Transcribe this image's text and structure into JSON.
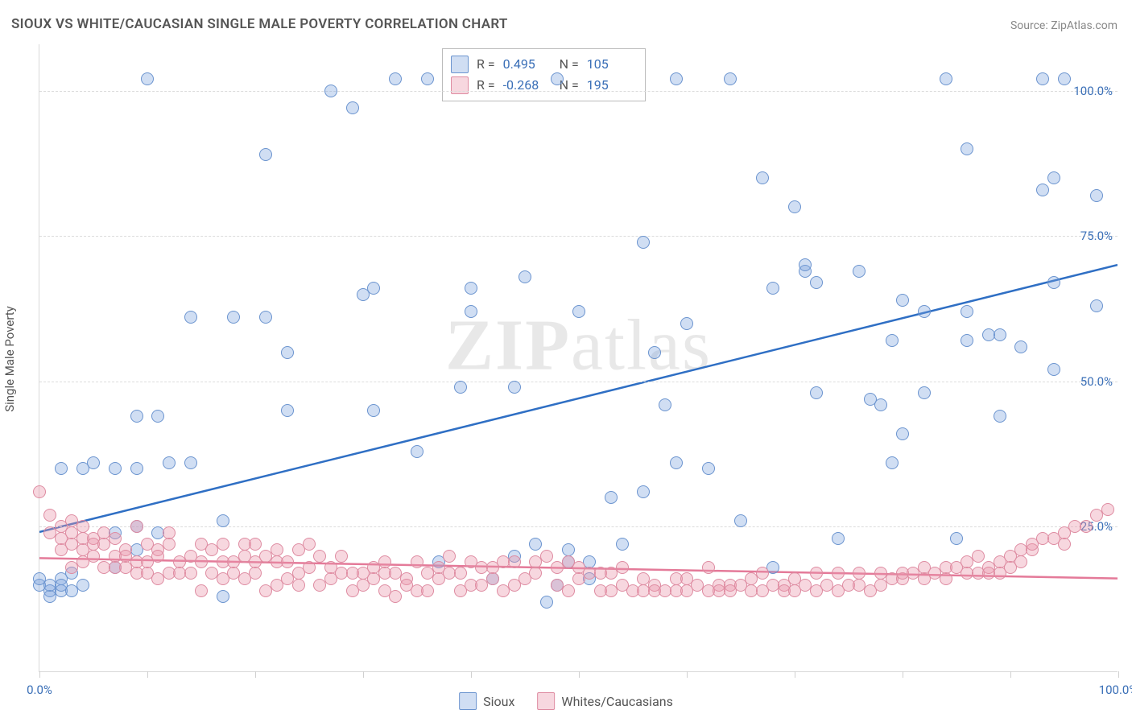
{
  "title": "SIOUX VS WHITE/CAUCASIAN SINGLE MALE POVERTY CORRELATION CHART",
  "source": "Source: ZipAtlas.com",
  "y_axis_title": "Single Male Poverty",
  "watermark": {
    "zip": "ZIP",
    "atlas": "atlas"
  },
  "chart": {
    "type": "scatter",
    "xlim": [
      0,
      100
    ],
    "ylim": [
      0,
      108
    ],
    "x_ticks": [
      0,
      10,
      20,
      30,
      40,
      50,
      60,
      70,
      80,
      90,
      100
    ],
    "y_gridlines": [
      25,
      50,
      75,
      100
    ],
    "y_labels": [
      "0.0%",
      "25.0%",
      "50.0%",
      "75.0%",
      "100.0%"
    ],
    "x_labels": {
      "min": "0.0%",
      "max": "100.0%"
    },
    "background_color": "#ffffff",
    "grid_color": "#dcdcdc",
    "tick_color": "#d0d0d0",
    "label_color": "#3a6fb7",
    "text_color": "#555555",
    "marker_radius": 8,
    "marker_border_width": 1.5,
    "trend_line_width": 2.5,
    "series": [
      {
        "name": "Sioux",
        "fill": "rgba(120,160,220,0.35)",
        "stroke": "#6b94cf",
        "trend_color": "#2f6fc4",
        "R": "0.495",
        "N": "105",
        "trend": {
          "y_at_x0": 24,
          "y_at_x100": 70
        },
        "points": [
          [
            0,
            15
          ],
          [
            0,
            16
          ],
          [
            1,
            14
          ],
          [
            1,
            13
          ],
          [
            1,
            15
          ],
          [
            2,
            16
          ],
          [
            2,
            14
          ],
          [
            2,
            15
          ],
          [
            2,
            35
          ],
          [
            3,
            14
          ],
          [
            3,
            17
          ],
          [
            4,
            15
          ],
          [
            4,
            35
          ],
          [
            5,
            36
          ],
          [
            7,
            35
          ],
          [
            7,
            18
          ],
          [
            7,
            24
          ],
          [
            9,
            21
          ],
          [
            9,
            25
          ],
          [
            9,
            35
          ],
          [
            9,
            44
          ],
          [
            10,
            102
          ],
          [
            11,
            24
          ],
          [
            11,
            44
          ],
          [
            12,
            36
          ],
          [
            14,
            36
          ],
          [
            14,
            61
          ],
          [
            17,
            13
          ],
          [
            17,
            26
          ],
          [
            18,
            61
          ],
          [
            21,
            89
          ],
          [
            21,
            61
          ],
          [
            23,
            45
          ],
          [
            23,
            55
          ],
          [
            27,
            100
          ],
          [
            29,
            97
          ],
          [
            30,
            65
          ],
          [
            31,
            45
          ],
          [
            31,
            66
          ],
          [
            33,
            102
          ],
          [
            35,
            38
          ],
          [
            36,
            102
          ],
          [
            37,
            19
          ],
          [
            39,
            49
          ],
          [
            40,
            62
          ],
          [
            40,
            66
          ],
          [
            42,
            16
          ],
          [
            44,
            20
          ],
          [
            44,
            49
          ],
          [
            45,
            68
          ],
          [
            46,
            22
          ],
          [
            47,
            12
          ],
          [
            48,
            15
          ],
          [
            48,
            102
          ],
          [
            49,
            19
          ],
          [
            49,
            21
          ],
          [
            50,
            62
          ],
          [
            51,
            16
          ],
          [
            51,
            19
          ],
          [
            53,
            30
          ],
          [
            54,
            22
          ],
          [
            56,
            74
          ],
          [
            56,
            31
          ],
          [
            57,
            55
          ],
          [
            58,
            46
          ],
          [
            59,
            102
          ],
          [
            59,
            36
          ],
          [
            60,
            60
          ],
          [
            62,
            35
          ],
          [
            64,
            102
          ],
          [
            65,
            26
          ],
          [
            67,
            85
          ],
          [
            68,
            18
          ],
          [
            68,
            66
          ],
          [
            70,
            80
          ],
          [
            71,
            69
          ],
          [
            71,
            70
          ],
          [
            72,
            48
          ],
          [
            72,
            67
          ],
          [
            74,
            23
          ],
          [
            76,
            69
          ],
          [
            77,
            47
          ],
          [
            78,
            46
          ],
          [
            79,
            57
          ],
          [
            79,
            36
          ],
          [
            80,
            64
          ],
          [
            80,
            41
          ],
          [
            82,
            48
          ],
          [
            82,
            62
          ],
          [
            84,
            102
          ],
          [
            85,
            23
          ],
          [
            86,
            90
          ],
          [
            86,
            57
          ],
          [
            86,
            62
          ],
          [
            88,
            58
          ],
          [
            89,
            44
          ],
          [
            89,
            58
          ],
          [
            91,
            56
          ],
          [
            93,
            83
          ],
          [
            93,
            102
          ],
          [
            94,
            52
          ],
          [
            94,
            85
          ],
          [
            94,
            67
          ],
          [
            95,
            102
          ],
          [
            98,
            82
          ],
          [
            98,
            63
          ]
        ]
      },
      {
        "name": "Whites/Caucasians",
        "fill": "rgba(235,150,170,0.38)",
        "stroke": "#de8ba1",
        "trend_color": "#e47a99",
        "R": "-0.268",
        "N": "195",
        "trend": {
          "y_at_x0": 19.5,
          "y_at_x100": 16
        },
        "points": [
          [
            0,
            31
          ],
          [
            1,
            24
          ],
          [
            1,
            27
          ],
          [
            2,
            23
          ],
          [
            2,
            25
          ],
          [
            2,
            21
          ],
          [
            3,
            22
          ],
          [
            3,
            24
          ],
          [
            3,
            26
          ],
          [
            3,
            18
          ],
          [
            4,
            23
          ],
          [
            4,
            21
          ],
          [
            4,
            25
          ],
          [
            4,
            19
          ],
          [
            5,
            23
          ],
          [
            5,
            20
          ],
          [
            5,
            22
          ],
          [
            6,
            24
          ],
          [
            6,
            18
          ],
          [
            6,
            22
          ],
          [
            7,
            20
          ],
          [
            7,
            18
          ],
          [
            7,
            23
          ],
          [
            8,
            21
          ],
          [
            8,
            18
          ],
          [
            8,
            20
          ],
          [
            9,
            25
          ],
          [
            9,
            17
          ],
          [
            9,
            19
          ],
          [
            10,
            22
          ],
          [
            10,
            17
          ],
          [
            10,
            19
          ],
          [
            11,
            21
          ],
          [
            11,
            16
          ],
          [
            11,
            20
          ],
          [
            12,
            22
          ],
          [
            12,
            17
          ],
          [
            12,
            24
          ],
          [
            13,
            19
          ],
          [
            13,
            17
          ],
          [
            14,
            17
          ],
          [
            14,
            20
          ],
          [
            15,
            14
          ],
          [
            15,
            19
          ],
          [
            15,
            22
          ],
          [
            16,
            17
          ],
          [
            16,
            21
          ],
          [
            17,
            19
          ],
          [
            17,
            16
          ],
          [
            17,
            22
          ],
          [
            18,
            19
          ],
          [
            18,
            17
          ],
          [
            19,
            20
          ],
          [
            19,
            22
          ],
          [
            19,
            16
          ],
          [
            20,
            22
          ],
          [
            20,
            17
          ],
          [
            20,
            19
          ],
          [
            21,
            20
          ],
          [
            21,
            14
          ],
          [
            22,
            21
          ],
          [
            22,
            15
          ],
          [
            22,
            19
          ],
          [
            23,
            16
          ],
          [
            23,
            19
          ],
          [
            24,
            21
          ],
          [
            24,
            17
          ],
          [
            24,
            15
          ],
          [
            25,
            18
          ],
          [
            25,
            22
          ],
          [
            26,
            15
          ],
          [
            26,
            20
          ],
          [
            27,
            18
          ],
          [
            27,
            16
          ],
          [
            28,
            20
          ],
          [
            28,
            17
          ],
          [
            29,
            17
          ],
          [
            29,
            14
          ],
          [
            30,
            17
          ],
          [
            30,
            15
          ],
          [
            31,
            18
          ],
          [
            31,
            16
          ],
          [
            32,
            19
          ],
          [
            32,
            14
          ],
          [
            32,
            17
          ],
          [
            33,
            13
          ],
          [
            33,
            17
          ],
          [
            34,
            16
          ],
          [
            34,
            15
          ],
          [
            35,
            19
          ],
          [
            35,
            14
          ],
          [
            36,
            17
          ],
          [
            36,
            14
          ],
          [
            37,
            16
          ],
          [
            37,
            18
          ],
          [
            38,
            17
          ],
          [
            38,
            20
          ],
          [
            39,
            14
          ],
          [
            39,
            17
          ],
          [
            40,
            19
          ],
          [
            40,
            15
          ],
          [
            41,
            18
          ],
          [
            41,
            15
          ],
          [
            42,
            16
          ],
          [
            42,
            18
          ],
          [
            43,
            19
          ],
          [
            43,
            14
          ],
          [
            44,
            19
          ],
          [
            44,
            15
          ],
          [
            45,
            16
          ],
          [
            46,
            17
          ],
          [
            46,
            19
          ],
          [
            47,
            20
          ],
          [
            48,
            18
          ],
          [
            48,
            15
          ],
          [
            49,
            14
          ],
          [
            49,
            19
          ],
          [
            50,
            18
          ],
          [
            50,
            16
          ],
          [
            51,
            17
          ],
          [
            52,
            14
          ],
          [
            52,
            17
          ],
          [
            53,
            14
          ],
          [
            53,
            17
          ],
          [
            54,
            18
          ],
          [
            54,
            15
          ],
          [
            55,
            14
          ],
          [
            56,
            14
          ],
          [
            56,
            16
          ],
          [
            57,
            15
          ],
          [
            57,
            14
          ],
          [
            58,
            14
          ],
          [
            59,
            16
          ],
          [
            59,
            14
          ],
          [
            60,
            14
          ],
          [
            60,
            16
          ],
          [
            61,
            15
          ],
          [
            62,
            14
          ],
          [
            62,
            18
          ],
          [
            63,
            15
          ],
          [
            63,
            14
          ],
          [
            64,
            15
          ],
          [
            64,
            14
          ],
          [
            65,
            15
          ],
          [
            66,
            14
          ],
          [
            66,
            16
          ],
          [
            67,
            14
          ],
          [
            67,
            17
          ],
          [
            68,
            15
          ],
          [
            69,
            15
          ],
          [
            69,
            14
          ],
          [
            70,
            16
          ],
          [
            70,
            14
          ],
          [
            71,
            15
          ],
          [
            72,
            14
          ],
          [
            72,
            17
          ],
          [
            73,
            15
          ],
          [
            74,
            17
          ],
          [
            74,
            14
          ],
          [
            75,
            15
          ],
          [
            76,
            15
          ],
          [
            76,
            17
          ],
          [
            77,
            14
          ],
          [
            78,
            17
          ],
          [
            78,
            15
          ],
          [
            79,
            16
          ],
          [
            80,
            16
          ],
          [
            80,
            17
          ],
          [
            81,
            17
          ],
          [
            82,
            16
          ],
          [
            82,
            18
          ],
          [
            83,
            17
          ],
          [
            84,
            16
          ],
          [
            84,
            18
          ],
          [
            85,
            18
          ],
          [
            86,
            17
          ],
          [
            86,
            19
          ],
          [
            87,
            17
          ],
          [
            87,
            20
          ],
          [
            88,
            18
          ],
          [
            88,
            17
          ],
          [
            89,
            19
          ],
          [
            89,
            17
          ],
          [
            90,
            20
          ],
          [
            90,
            18
          ],
          [
            91,
            21
          ],
          [
            91,
            19
          ],
          [
            92,
            21
          ],
          [
            92,
            22
          ],
          [
            93,
            23
          ],
          [
            94,
            23
          ],
          [
            95,
            24
          ],
          [
            95,
            22
          ],
          [
            96,
            25
          ],
          [
            97,
            25
          ],
          [
            98,
            27
          ],
          [
            99,
            28
          ]
        ]
      }
    ]
  },
  "bottom_legend": [
    "Sioux",
    "Whites/Caucasians"
  ]
}
